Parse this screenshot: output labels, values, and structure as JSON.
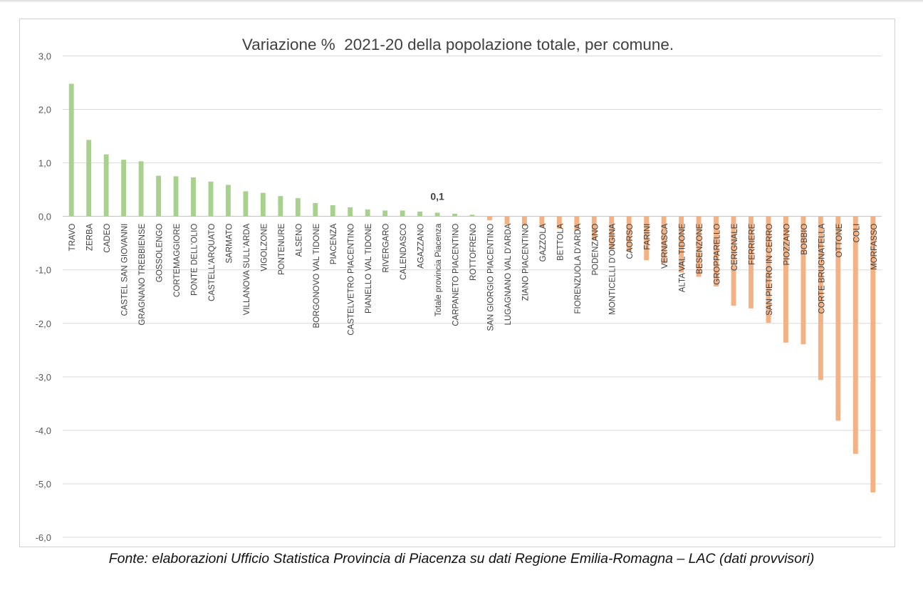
{
  "chart_data": {
    "type": "bar",
    "title": "Variazione %  2021-20 della popolazione totale, per comune.",
    "xlabel": "",
    "ylabel": "",
    "ylim": [
      -6.0,
      3.0
    ],
    "yticks": [
      "3,0",
      "2,0",
      "1,0",
      "0,0",
      "-1,0",
      "-2,0",
      "-3,0",
      "-4,0",
      "-5,0",
      "-6,0"
    ],
    "grid": true,
    "legend": "none",
    "colors": {
      "positive": "#a9d18e",
      "negative": "#f4b183",
      "grid": "#d9d9d9",
      "axis": "#bfbfbf"
    },
    "categories": [
      "TRAVO",
      "ZERBA",
      "CADEO",
      "CASTEL SAN GIOVANNI",
      "GRAGNANO TREBBIENSE",
      "GOSSOLENGO",
      "CORTEMAGGIORE",
      "PONTE DELL'OLIO",
      "CASTELL'ARQUATO",
      "SARMATO",
      "VILLANOVA SULL'ARDA",
      "VIGOLZONE",
      "PONTENURE",
      "ALSENO",
      "BORGONOVO VAL TIDONE",
      "PIACENZA",
      "CASTELVETRO PIACENTINO",
      "PIANELLO VAL TIDONE",
      "RIVERGARO",
      "CALENDASCO",
      "AGAZZANO",
      "Totale provincia Piacenza",
      "CARPANETO PIACENTINO",
      "ROTTOFRENO",
      "SAN GIORGIO PIACENTINO",
      "LUGAGNANO VAL D'ARDA",
      "ZIANO PIACENTINO",
      "GAZZOLA",
      "BETTOLA",
      "FIORENZUOLA D'ARDA",
      "PODENZANO",
      "MONTICELLI D'ONGINA",
      "CAORSO",
      "FARINI",
      "VERNASCA",
      "ALTA VAL TIDONE",
      "BESENZONE",
      "GROPPARELLO",
      "CERIGNALE",
      "FERRIERE",
      "SAN PIETRO IN CERRO",
      "PIOZZANO",
      "BOBBIO",
      "CORTE BRUGNATELLA",
      "OTTONE",
      "COLI",
      "MORFASSO"
    ],
    "values": [
      2.48,
      1.43,
      1.16,
      1.06,
      1.03,
      0.76,
      0.75,
      0.73,
      0.65,
      0.59,
      0.47,
      0.44,
      0.38,
      0.34,
      0.25,
      0.21,
      0.17,
      0.13,
      0.11,
      0.11,
      0.09,
      0.07,
      0.05,
      0.03,
      -0.07,
      -0.15,
      -0.18,
      -0.2,
      -0.23,
      -0.27,
      -0.45,
      -0.62,
      -0.66,
      -0.82,
      -0.88,
      -1.05,
      -1.13,
      -1.31,
      -1.67,
      -1.72,
      -1.99,
      -2.36,
      -2.39,
      -3.06,
      -3.82,
      -4.44,
      -5.16
    ],
    "annotations": [
      {
        "category": "Totale provincia Piacenza",
        "text": "0,1"
      }
    ]
  },
  "source_note": "Fonte: elaborazioni Ufficio Statistica Provincia di Piacenza su dati Regione Emilia-Romagna – LAC (dati provvisori)"
}
